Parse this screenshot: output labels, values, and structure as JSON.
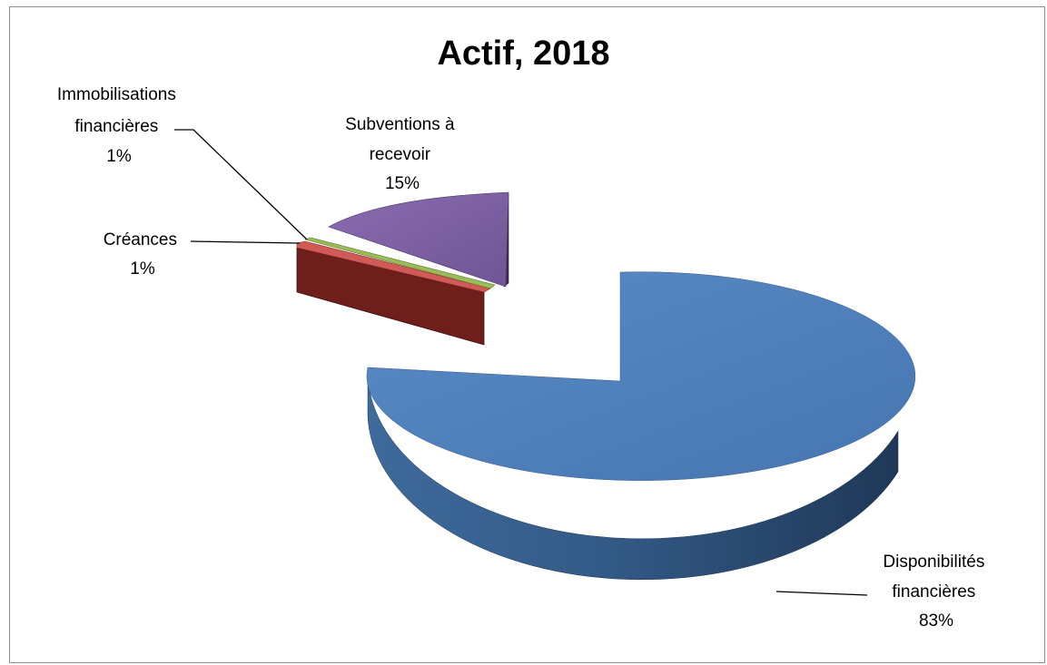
{
  "chart_data": {
    "type": "pie",
    "title": "Actif, 2018",
    "slices": [
      {
        "name": "Disponibilités financières",
        "percent_label": "83%",
        "value": 83,
        "color": "#4f81bd"
      },
      {
        "name": "Créances",
        "percent_label": "1%",
        "value": 1,
        "color": "#c0504d"
      },
      {
        "name": "Immobilisations financières",
        "percent_label": "1%",
        "value": 1,
        "color": "#9bbb59"
      },
      {
        "name": "Subventions à recevoir",
        "percent_label": "15%",
        "value": 15,
        "color": "#8064a2"
      }
    ],
    "labels": {
      "disponibilites": [
        "Disponibilités",
        "financières",
        "83%"
      ],
      "creances": [
        "Créances",
        "1%"
      ],
      "immobilisations": [
        "Immobilisations",
        "financières",
        "1%"
      ],
      "subventions": [
        "Subventions à",
        "recevoir",
        "15%"
      ]
    },
    "legend": "none",
    "style": "3d-exploded"
  }
}
